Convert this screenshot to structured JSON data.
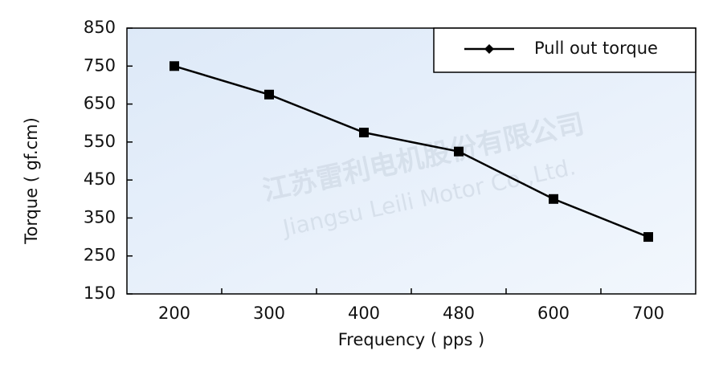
{
  "chart_data": {
    "type": "line",
    "x_label": "Frequency ( pps )",
    "y_label": "Torque ( gf.cm)",
    "categories": [
      "200",
      "300",
      "400",
      "480",
      "600",
      "700"
    ],
    "series": [
      {
        "name": "Pull out torque",
        "color": "#000000",
        "values": [
          750,
          675,
          575,
          525,
          400,
          300
        ]
      }
    ],
    "ylim": [
      150,
      850
    ],
    "yticks": [
      150,
      250,
      350,
      450,
      550,
      650,
      750,
      850
    ],
    "legend": "top-right",
    "watermark": [
      "江苏雷利电机股份有限公司",
      "Jiangsu Leili Motor Co.,Ltd."
    ]
  }
}
